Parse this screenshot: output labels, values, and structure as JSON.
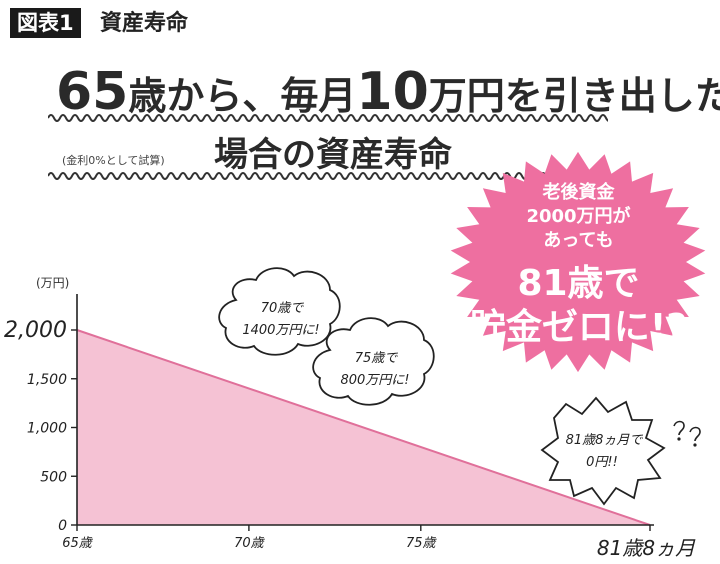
{
  "figure": {
    "tag": "図表1",
    "name": "資産寿命"
  },
  "headline": {
    "part1": "65",
    "part2": "歳から、毎月",
    "part3": "10",
    "part4": "万円を引き出した",
    "line2": "場合の資産寿命",
    "note": "(金利0%として試算)"
  },
  "badge": {
    "line1": "老後資金",
    "line2": "2000万円が",
    "line3": "あっても",
    "line4": "81歳で",
    "line5": "貯金ゼロに!?",
    "color": "#ee6fa0"
  },
  "bubbles": [
    {
      "line1": "70歳で",
      "line2": "1400万円に!"
    },
    {
      "line1": "75歳で",
      "line2": "800万円に!"
    },
    {
      "line1": "81歳8ヵ月で",
      "line2": "0円!!"
    }
  ],
  "chart_data": {
    "type": "area",
    "x": [
      65,
      81.6667
    ],
    "values": [
      2000,
      0
    ],
    "x_ticks": [
      65,
      70,
      75
    ],
    "x_tick_labels": [
      "65歳",
      "70歳",
      "75歳"
    ],
    "x_end_label": "81歳8ヵ月",
    "y_ticks": [
      0,
      500,
      1000,
      1500,
      2000
    ],
    "y_tick_labels": [
      "0",
      "500",
      "1,000",
      "1,500",
      "2,000"
    ],
    "ylabel": "(万円)",
    "xlim": [
      65,
      81.6667
    ],
    "ylim": [
      0,
      2000
    ],
    "fill_color": "#f5c2d4",
    "line_color": "#e0709a",
    "grid": false
  }
}
